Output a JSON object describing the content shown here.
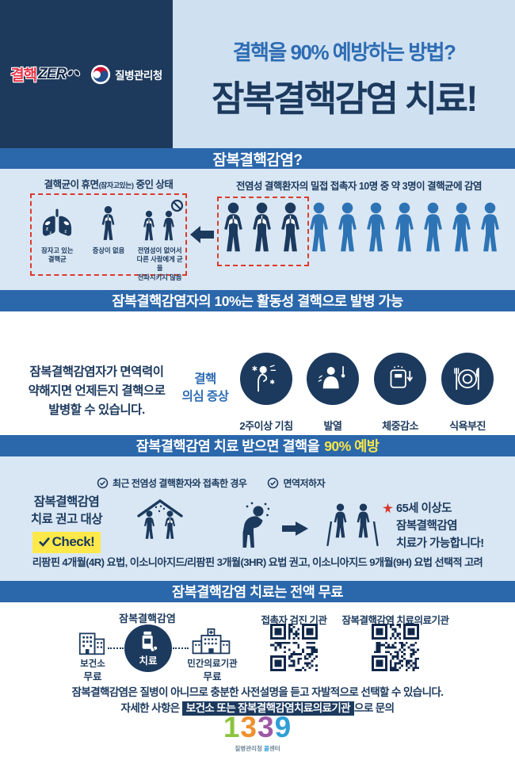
{
  "colors": {
    "navy": "#1c3a5e",
    "banner_blue": "#2b67ab",
    "light_blue": "#d9e7f4",
    "header_blue": "#cfe0f1",
    "person_blue": "#2e74b5",
    "red": "#dd3a2e",
    "yellow": "#f7e64a"
  },
  "header": {
    "logo_tb_red": "결핵",
    "logo_tb_zero": "ZER",
    "logo_agency": "질병관리청",
    "subtitle": "결핵을 90% 예방하는 방법?",
    "title": "잠복결핵감염 치료!"
  },
  "section_what": {
    "banner": "잠복결핵감염?",
    "dormant": {
      "heading_main": "결핵균이 휴면",
      "heading_small": "(잠자고있는)",
      "heading_tail": " 중인 상태",
      "items": [
        {
          "icon": "sleeping-lungs-icon",
          "label": "잠자고 있는\n결핵균"
        },
        {
          "icon": "person-icon",
          "label": "증상이 없음"
        },
        {
          "icon": "no-spread-icon",
          "label": "전염성이 없어서\n다른 사람에게 균을\n전파시키지 않음"
        }
      ]
    },
    "contact": {
      "heading": "전염성 결핵환자의 밀접 접촉자 10명 중 약 3명이 결핵균에 감염",
      "infected_count": 3,
      "total_count": 10
    }
  },
  "section_risk": {
    "banner": "잠복결핵감염자의 10%는 활동성 결핵으로 발병 가능",
    "description": "잠복결핵감염자가 면역력이\n약해지면 언제든지 결핵으로\n발병할 수 있습니다.",
    "symptom_label": "결핵\n의심 증상",
    "symptoms": [
      {
        "icon": "cough-icon",
        "label": "2주이상 기침"
      },
      {
        "icon": "fever-icon",
        "label": "발열"
      },
      {
        "icon": "weight-loss-icon",
        "label": "체중감소"
      },
      {
        "icon": "appetite-loss-icon",
        "label": "식욕부진"
      }
    ]
  },
  "section_treat": {
    "banner_main": "잠복결핵감염 치료 받으면 결핵을",
    "banner_highlight": "90% 예방",
    "target_title": "잠복결핵감염\n치료 권고 대상",
    "check_label": "Check!",
    "criteria": [
      {
        "label": "최근 전염성 결핵환자와 접촉한 경우"
      },
      {
        "label": "면역저하자"
      }
    ],
    "elderly_note": "65세 이상도\n잠복결핵감염\n치료가 가능합니다!",
    "regimen": "리팜핀 4개월(4R) 요법, 이소니아지드/리팜핀 3개월(3HR) 요법 권고, 이소니아지드 9개월(9H) 요법 선택적 고려"
  },
  "section_free": {
    "banner": "잠복결핵감염 치료는 전액 무료",
    "flow_title": "잠복결핵감염",
    "circle_label": "치료",
    "left_name": "보건소",
    "left_cost": "무료",
    "right_name": "민간의료기관",
    "right_cost": "무료",
    "qr_contact_label": "접촉자 검진 기관",
    "qr_treat_label": "잠복결핵감염 치료의료기관",
    "notice_line1": "잠복결핵감염은 질병이 아니므로 충분한 사전설명을 듣고 자발적으로 선택할 수 있습니다.",
    "notice_line2_pre": "자세한 사항은 ",
    "notice_line2_highlight": "보건소 또는 잠복결핵감염치료의료기관",
    "notice_line2_post": "으로 문의"
  },
  "footer": {
    "hotline_digits": [
      {
        "char": "1",
        "color": "#8cc43e"
      },
      {
        "char": "3",
        "color": "#ef8f2e"
      },
      {
        "char": "3",
        "color": "#9c59a5"
      },
      {
        "char": "9",
        "color": "#2f9fd8"
      }
    ],
    "caption_pre": "질병관리청 ",
    "caption_accent": "콜",
    "caption_post": "센터"
  }
}
